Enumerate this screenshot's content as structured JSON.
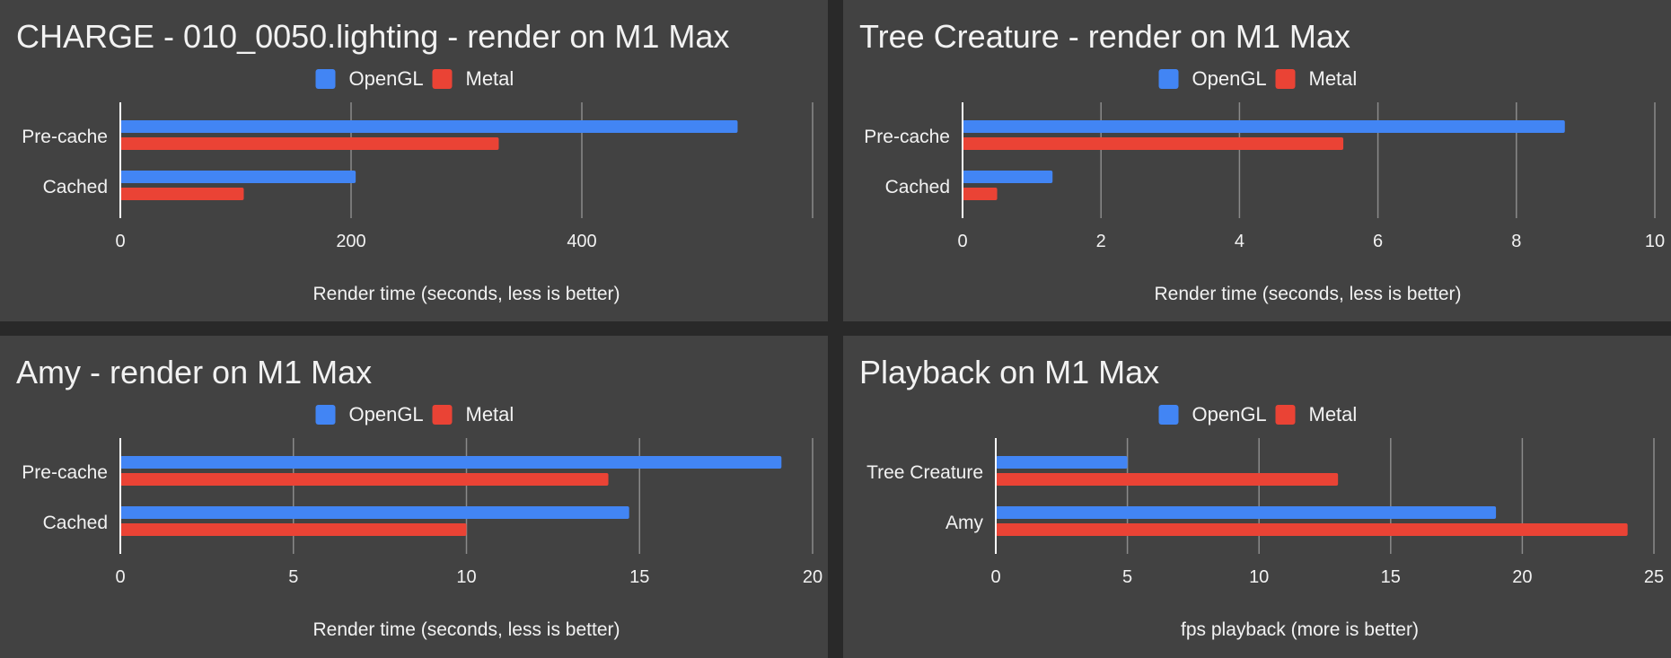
{
  "chart_data": [
    {
      "type": "bar",
      "orientation": "horizontal",
      "title": "CHARGE - 010_0050.lighting - render on M1 Max",
      "categories": [
        "Pre-cache",
        "Cached"
      ],
      "series": [
        {
          "name": "OpenGL",
          "values": [
            535,
            204
          ]
        },
        {
          "name": "Metal",
          "values": [
            328,
            107
          ]
        }
      ],
      "xlabel": "Render time (seconds, less is better)",
      "ylabel": "",
      "xlim": [
        0,
        600
      ],
      "ticks": [
        0,
        200,
        400
      ],
      "tick_labels": [
        "0",
        "200",
        "400"
      ],
      "grid": true,
      "legend_position": "top"
    },
    {
      "type": "bar",
      "orientation": "horizontal",
      "title": "Tree Creature - render on M1 Max",
      "categories": [
        "Pre-cache",
        "Cached"
      ],
      "series": [
        {
          "name": "OpenGL",
          "values": [
            8.7,
            1.3
          ]
        },
        {
          "name": "Metal",
          "values": [
            5.5,
            0.5
          ]
        }
      ],
      "xlabel": "Render time (seconds, less is better)",
      "ylabel": "",
      "xlim": [
        0,
        10
      ],
      "ticks": [
        0,
        2,
        4,
        6,
        8,
        10
      ],
      "tick_labels": [
        "0",
        "2",
        "4",
        "6",
        "8",
        "10"
      ],
      "grid": true,
      "legend_position": "top"
    },
    {
      "type": "bar",
      "orientation": "horizontal",
      "title": "Amy - render on M1 Max",
      "categories": [
        "Pre-cache",
        "Cached"
      ],
      "series": [
        {
          "name": "OpenGL",
          "values": [
            19.1,
            14.7
          ]
        },
        {
          "name": "Metal",
          "values": [
            14.1,
            10.0
          ]
        }
      ],
      "xlabel": "Render time (seconds, less is better)",
      "ylabel": "",
      "xlim": [
        0,
        20
      ],
      "ticks": [
        0,
        5,
        10,
        15,
        20
      ],
      "tick_labels": [
        "0",
        "5",
        "10",
        "15",
        "20"
      ],
      "grid": true,
      "legend_position": "top"
    },
    {
      "type": "bar",
      "orientation": "horizontal",
      "title": "Playback on M1 Max",
      "categories": [
        "Tree Creature",
        "Amy"
      ],
      "series": [
        {
          "name": "OpenGL",
          "values": [
            5,
            19
          ]
        },
        {
          "name": "Metal",
          "values": [
            13,
            24
          ]
        }
      ],
      "xlabel": "fps playback (more is better)",
      "ylabel": "",
      "xlim": [
        0,
        25
      ],
      "ticks": [
        0,
        5,
        10,
        15,
        20,
        25
      ],
      "tick_labels": [
        "0",
        "5",
        "10",
        "15",
        "20",
        "25"
      ],
      "grid": true,
      "legend_position": "top"
    }
  ],
  "colors": {
    "page_background": "#292929",
    "panel_background": "#424242",
    "text": "#f2f2f2",
    "grid": "#8a8a8a",
    "axis": "#ffffff",
    "series": [
      "#4285f4",
      "#ea4335"
    ]
  }
}
